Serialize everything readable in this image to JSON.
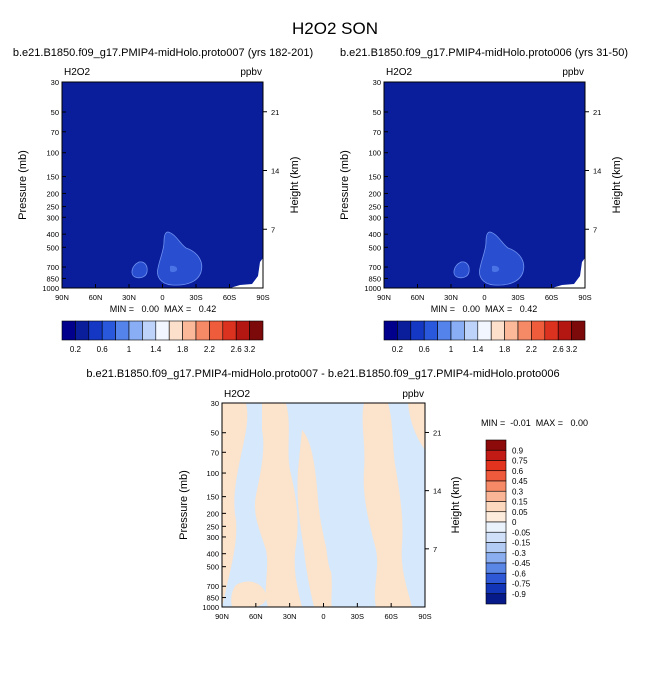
{
  "figure": {
    "title": "H2O2 SON",
    "left_title": "b.e21.B1850.f09_g17.PMIP4-midHolo.proto007 (yrs 182-201)",
    "right_title": "b.e21.B1850.f09_g17.PMIP4-midHolo.proto006 (yrs 31-50)",
    "diff_title": "b.e21.B1850.f09_g17.PMIP4-midHolo.proto007 - b.e21.B1850.f09_g17.PMIP4-midHolo.proto006"
  },
  "colors": {
    "background_field": "#0a1e9c",
    "contour_blue": "#2a4ed0",
    "contour_inner": "#4a73e6",
    "diff_blue": "#d6e8fb",
    "diff_orange": "#fbe3cc"
  },
  "chart_data": [
    {
      "type": "heatmap",
      "name": "proto007",
      "var_label": "H2O2",
      "units_label": "ppbv",
      "ylabel": "Pressure (mb)",
      "y2label": "Height (km)",
      "x_ticks": [
        "90N",
        "60N",
        "30N",
        "0",
        "30S",
        "60S",
        "90S"
      ],
      "y_ticks": [
        "30",
        "50",
        "70",
        "100",
        "150",
        "200",
        "250",
        "300",
        "400",
        "500",
        "700",
        "850",
        "1000"
      ],
      "y2_ticks": [
        "21",
        "14",
        "7"
      ],
      "min_text": "MIN =   0.00  MAX =   0.42",
      "colorbar": {
        "labels": [
          "0.2",
          "0.6",
          "1",
          "1.4",
          "1.8",
          "2.2",
          "2.6",
          "3.2"
        ],
        "colors": [
          "#00008c",
          "#0a1e9c",
          "#1438c4",
          "#2a58dc",
          "#5583ec",
          "#8aaef5",
          "#bdd3fa",
          "#f1f6ff",
          "#fde0cc",
          "#fbb99a",
          "#f68a66",
          "#ee5c3b",
          "#db3220",
          "#b41612",
          "#7d0a0a"
        ]
      }
    },
    {
      "type": "heatmap",
      "name": "proto006",
      "var_label": "H2O2",
      "units_label": "ppbv",
      "ylabel": "Pressure (mb)",
      "y2label": "Height (km)",
      "x_ticks": [
        "90N",
        "60N",
        "30N",
        "0",
        "30S",
        "60S",
        "90S"
      ],
      "y_ticks": [
        "30",
        "50",
        "70",
        "100",
        "150",
        "200",
        "250",
        "300",
        "400",
        "500",
        "700",
        "850",
        "1000"
      ],
      "y2_ticks": [
        "21",
        "14",
        "7"
      ],
      "min_text": "MIN =   0.00  MAX =   0.42",
      "colorbar": {
        "labels": [
          "0.2",
          "0.6",
          "1",
          "1.4",
          "1.8",
          "2.2",
          "2.6",
          "3.2"
        ],
        "colors": [
          "#00008c",
          "#0a1e9c",
          "#1438c4",
          "#2a58dc",
          "#5583ec",
          "#8aaef5",
          "#bdd3fa",
          "#f1f6ff",
          "#fde0cc",
          "#fbb99a",
          "#f68a66",
          "#ee5c3b",
          "#db3220",
          "#b41612",
          "#7d0a0a"
        ]
      }
    },
    {
      "type": "heatmap",
      "name": "difference",
      "var_label": "H2O2",
      "units_label": "ppbv",
      "ylabel": "Pressure (mb)",
      "y2label": "Height (km)",
      "x_ticks": [
        "90N",
        "60N",
        "30N",
        "0",
        "30S",
        "60S",
        "90S"
      ],
      "y_ticks": [
        "30",
        "50",
        "70",
        "100",
        "150",
        "200",
        "250",
        "300",
        "400",
        "500",
        "700",
        "850",
        "1000"
      ],
      "y2_ticks": [
        "21",
        "14",
        "7"
      ],
      "min_text": "MIN =  -0.01  MAX =   0.00",
      "colorbar": {
        "labels": [
          "0.9",
          "0.75",
          "0.6",
          "0.45",
          "0.3",
          "0.15",
          "0.05",
          "0",
          "-0.05",
          "-0.15",
          "-0.3",
          "-0.45",
          "-0.6",
          "-0.75",
          "-0.9"
        ],
        "colors": [
          "#8c0a0a",
          "#c21a14",
          "#e2331f",
          "#f05a3c",
          "#f78a66",
          "#fab596",
          "#fcd8bf",
          "#fdebdc",
          "#eaf2fc",
          "#cfe0f8",
          "#b1cbf4",
          "#8aaef0",
          "#5a86e6",
          "#2f58d6",
          "#1235b8",
          "#061a8a"
        ]
      }
    }
  ]
}
